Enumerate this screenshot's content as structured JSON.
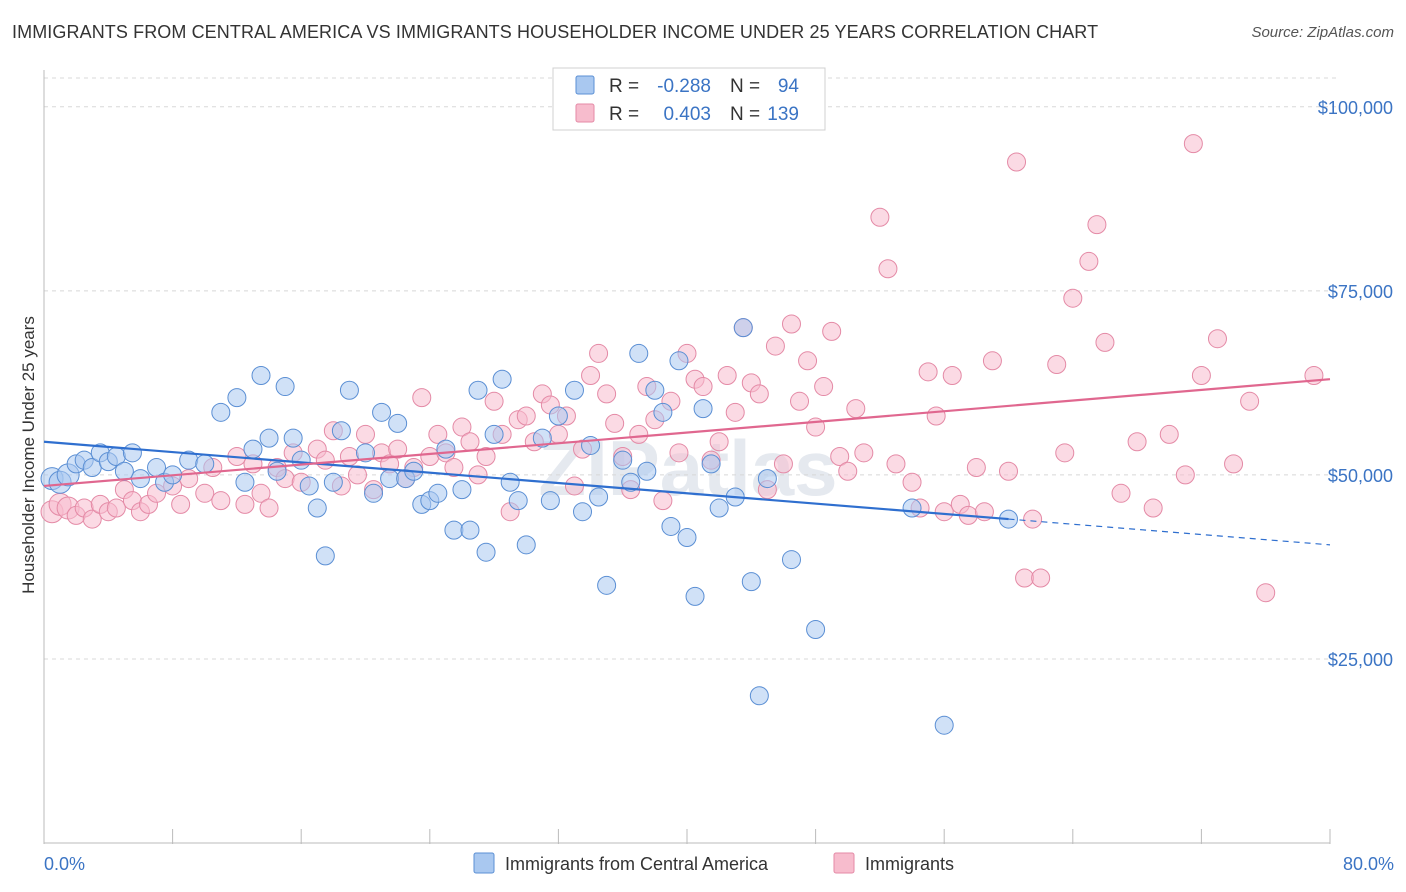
{
  "title": "IMMIGRANTS FROM CENTRAL AMERICA VS IMMIGRANTS HOUSEHOLDER INCOME UNDER 25 YEARS CORRELATION CHART",
  "source": "Source: ZipAtlas.com",
  "watermark": "ZIPatlas",
  "colors": {
    "blue_fill": "#a9c8f0",
    "blue_stroke": "#5b8fd4",
    "blue_line": "#2f6fcf",
    "pink_fill": "#f7bccd",
    "pink_stroke": "#e48aa6",
    "pink_line": "#e0678f",
    "axis_label": "#3b74c4",
    "grid": "#d8d8d8"
  },
  "legend_top": [
    {
      "r_label": "R =",
      "r_value": "-0.288",
      "n_label": "N =",
      "n_value": "94"
    },
    {
      "r_label": "R =",
      "r_value": "0.403",
      "n_label": "N =",
      "n_value": "139"
    }
  ],
  "legend_bottom": [
    "Immigrants from Central America",
    "Immigrants"
  ],
  "chart_data": {
    "type": "scatter",
    "title": "IMMIGRANTS FROM CENTRAL AMERICA VS IMMIGRANTS HOUSEHOLDER INCOME UNDER 25 YEARS CORRELATION CHART",
    "xlabel": "",
    "ylabel": "Householder Income Under 25 years",
    "xlim": [
      0,
      80
    ],
    "ylim": [
      0,
      105000
    ],
    "x_tick_labels": [
      "0.0%",
      "80.0%"
    ],
    "y_ticks": [
      25000,
      50000,
      75000,
      100000
    ],
    "y_tick_labels": [
      "$25,000",
      "$50,000",
      "$75,000",
      "$100,000"
    ],
    "series": [
      {
        "name": "Immigrants from Central America",
        "r": -0.288,
        "n": 94,
        "trend": {
          "x0": 0,
          "y0": 54500,
          "x1": 60,
          "y1": 44000,
          "dash_to_x": 80,
          "dash_to_y": 40500
        },
        "points": [
          [
            0.5,
            49500
          ],
          [
            1,
            49000
          ],
          [
            1.5,
            50000
          ],
          [
            2,
            51500
          ],
          [
            2.5,
            52000
          ],
          [
            3,
            51000
          ],
          [
            3.5,
            53000
          ],
          [
            4,
            51800
          ],
          [
            4.5,
            52500
          ],
          [
            5,
            50500
          ],
          [
            5.5,
            53000
          ],
          [
            6,
            49500
          ],
          [
            7,
            51000
          ],
          [
            7.5,
            49000
          ],
          [
            8,
            50000
          ],
          [
            9,
            52000
          ],
          [
            10,
            51500
          ],
          [
            11,
            58500
          ],
          [
            12,
            60500
          ],
          [
            12.5,
            49000
          ],
          [
            13,
            53500
          ],
          [
            13.5,
            63500
          ],
          [
            14,
            55000
          ],
          [
            14.5,
            50500
          ],
          [
            15,
            62000
          ],
          [
            15.5,
            55000
          ],
          [
            16,
            52000
          ],
          [
            16.5,
            48500
          ],
          [
            17,
            45500
          ],
          [
            17.5,
            39000
          ],
          [
            18,
            49000
          ],
          [
            18.5,
            56000
          ],
          [
            19,
            61500
          ],
          [
            20,
            53000
          ],
          [
            20.5,
            47500
          ],
          [
            21,
            58500
          ],
          [
            21.5,
            49500
          ],
          [
            22,
            57000
          ],
          [
            22.5,
            49500
          ],
          [
            23,
            50500
          ],
          [
            23.5,
            46000
          ],
          [
            24,
            46500
          ],
          [
            24.5,
            47500
          ],
          [
            25,
            53500
          ],
          [
            25.5,
            42500
          ],
          [
            26,
            48000
          ],
          [
            26.5,
            42500
          ],
          [
            27,
            61500
          ],
          [
            27.5,
            39500
          ],
          [
            28,
            55500
          ],
          [
            28.5,
            63000
          ],
          [
            29,
            49000
          ],
          [
            29.5,
            46500
          ],
          [
            30,
            40500
          ],
          [
            31,
            55000
          ],
          [
            31.5,
            46500
          ],
          [
            32,
            58000
          ],
          [
            33,
            61500
          ],
          [
            33.5,
            45000
          ],
          [
            34,
            54000
          ],
          [
            34.5,
            47000
          ],
          [
            35,
            35000
          ],
          [
            36,
            52000
          ],
          [
            36.5,
            49000
          ],
          [
            37,
            66500
          ],
          [
            37.5,
            50500
          ],
          [
            38,
            61500
          ],
          [
            38.5,
            58500
          ],
          [
            39,
            43000
          ],
          [
            39.5,
            65500
          ],
          [
            40,
            41500
          ],
          [
            40.5,
            33500
          ],
          [
            41,
            59000
          ],
          [
            41.5,
            51500
          ],
          [
            42,
            45500
          ],
          [
            43,
            47000
          ],
          [
            43.5,
            70000
          ],
          [
            44,
            35500
          ],
          [
            44.5,
            20000
          ],
          [
            45,
            49500
          ],
          [
            46.5,
            38500
          ],
          [
            48,
            29000
          ],
          [
            54,
            45500
          ],
          [
            56,
            16000
          ],
          [
            60,
            44000
          ]
        ]
      },
      {
        "name": "Immigrants",
        "r": 0.403,
        "n": 139,
        "trend": {
          "x0": 0,
          "y0": 48500,
          "x1": 80,
          "y1": 63000
        },
        "points": [
          [
            0.5,
            45000
          ],
          [
            1,
            46000
          ],
          [
            1.5,
            45500
          ],
          [
            2,
            44500
          ],
          [
            2.5,
            45500
          ],
          [
            3,
            44000
          ],
          [
            3.5,
            46000
          ],
          [
            4,
            45000
          ],
          [
            4.5,
            45500
          ],
          [
            5,
            48000
          ],
          [
            5.5,
            46500
          ],
          [
            6,
            45000
          ],
          [
            6.5,
            46000
          ],
          [
            7,
            47500
          ],
          [
            8,
            48500
          ],
          [
            8.5,
            46000
          ],
          [
            9,
            49500
          ],
          [
            10,
            47500
          ],
          [
            10.5,
            51000
          ],
          [
            11,
            46500
          ],
          [
            12,
            52500
          ],
          [
            12.5,
            46000
          ],
          [
            13,
            51500
          ],
          [
            13.5,
            47500
          ],
          [
            14,
            45500
          ],
          [
            14.5,
            51000
          ],
          [
            15,
            49500
          ],
          [
            15.5,
            53000
          ],
          [
            16,
            49000
          ],
          [
            17,
            53500
          ],
          [
            17.5,
            52000
          ],
          [
            18,
            56000
          ],
          [
            18.5,
            48500
          ],
          [
            19,
            52500
          ],
          [
            19.5,
            50000
          ],
          [
            20,
            55500
          ],
          [
            20.5,
            48000
          ],
          [
            21,
            53000
          ],
          [
            21.5,
            51500
          ],
          [
            22,
            53500
          ],
          [
            22.5,
            49500
          ],
          [
            23,
            51000
          ],
          [
            23.5,
            60500
          ],
          [
            24,
            52500
          ],
          [
            24.5,
            55500
          ],
          [
            25,
            53000
          ],
          [
            25.5,
            51000
          ],
          [
            26,
            56500
          ],
          [
            26.5,
            54500
          ],
          [
            27,
            50000
          ],
          [
            27.5,
            52500
          ],
          [
            28,
            60000
          ],
          [
            28.5,
            55500
          ],
          [
            29,
            45000
          ],
          [
            29.5,
            57500
          ],
          [
            30,
            58000
          ],
          [
            30.5,
            54500
          ],
          [
            31,
            61000
          ],
          [
            31.5,
            59500
          ],
          [
            32,
            55500
          ],
          [
            32.5,
            58000
          ],
          [
            33,
            48500
          ],
          [
            33.5,
            53500
          ],
          [
            34,
            63500
          ],
          [
            34.5,
            66500
          ],
          [
            35,
            61000
          ],
          [
            35.5,
            57000
          ],
          [
            36,
            52500
          ],
          [
            36.5,
            48000
          ],
          [
            37,
            55500
          ],
          [
            37.5,
            62000
          ],
          [
            38,
            57500
          ],
          [
            38.5,
            46500
          ],
          [
            39,
            60000
          ],
          [
            39.5,
            53000
          ],
          [
            40,
            66500
          ],
          [
            40.5,
            63000
          ],
          [
            41,
            62000
          ],
          [
            41.5,
            52000
          ],
          [
            42,
            54500
          ],
          [
            42.5,
            63500
          ],
          [
            43,
            58500
          ],
          [
            43.5,
            70000
          ],
          [
            44,
            62500
          ],
          [
            44.5,
            61000
          ],
          [
            45,
            48000
          ],
          [
            45.5,
            67500
          ],
          [
            46,
            51500
          ],
          [
            46.5,
            70500
          ],
          [
            47,
            60000
          ],
          [
            47.5,
            65500
          ],
          [
            48,
            56500
          ],
          [
            48.5,
            62000
          ],
          [
            49,
            69500
          ],
          [
            49.5,
            52500
          ],
          [
            50,
            50500
          ],
          [
            50.5,
            59000
          ],
          [
            51,
            53000
          ],
          [
            52,
            85000
          ],
          [
            52.5,
            78000
          ],
          [
            53,
            51500
          ],
          [
            54,
            49000
          ],
          [
            54.5,
            45500
          ],
          [
            55,
            64000
          ],
          [
            55.5,
            58000
          ],
          [
            56,
            45000
          ],
          [
            56.5,
            63500
          ],
          [
            57,
            46000
          ],
          [
            57.5,
            44500
          ],
          [
            58,
            51000
          ],
          [
            58.5,
            45000
          ],
          [
            59,
            65500
          ],
          [
            60,
            50500
          ],
          [
            60.5,
            92500
          ],
          [
            61,
            36000
          ],
          [
            61.5,
            44000
          ],
          [
            62,
            36000
          ],
          [
            63,
            65000
          ],
          [
            63.5,
            53000
          ],
          [
            64,
            74000
          ],
          [
            65,
            79000
          ],
          [
            65.5,
            84000
          ],
          [
            66,
            68000
          ],
          [
            67,
            47500
          ],
          [
            68,
            54500
          ],
          [
            69,
            45500
          ],
          [
            70,
            55500
          ],
          [
            71,
            50000
          ],
          [
            71.5,
            95000
          ],
          [
            72,
            63500
          ],
          [
            73,
            68500
          ],
          [
            74,
            51500
          ],
          [
            75,
            60000
          ],
          [
            76,
            34000
          ],
          [
            79,
            63500
          ]
        ]
      }
    ]
  }
}
